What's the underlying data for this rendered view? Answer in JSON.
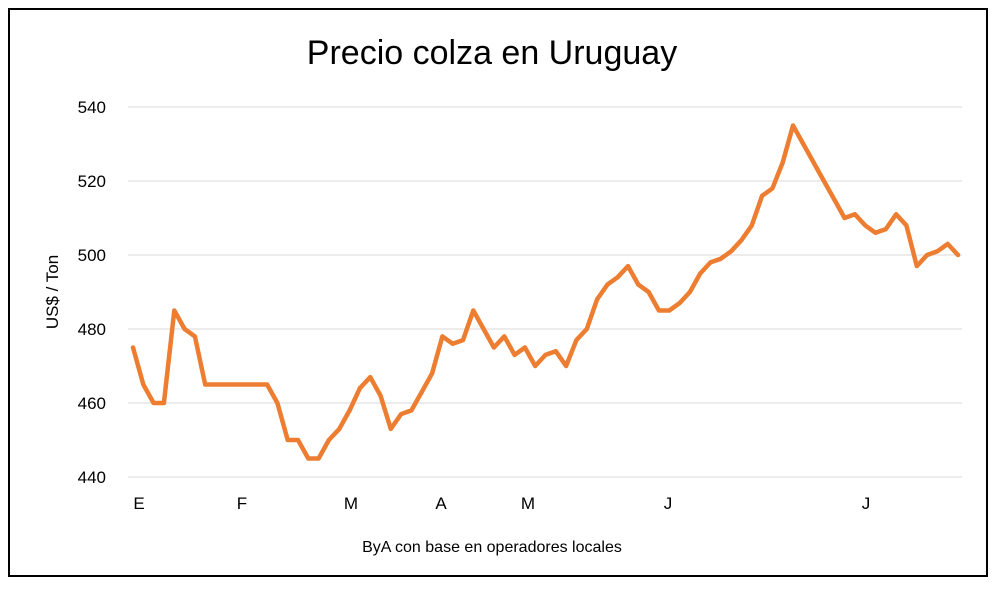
{
  "chart_data": {
    "type": "line",
    "title": "Precio colza en Uruguay",
    "ylabel": "US$ / Ton",
    "xlabel": "ByA con base en operadores locales",
    "ylim": [
      440,
      540
    ],
    "yticks": [
      440,
      460,
      480,
      500,
      520,
      540
    ],
    "month_labels": [
      "E",
      "F",
      "M",
      "A",
      "M",
      "J",
      "J"
    ],
    "grid": true,
    "line_color": "#ED7D31",
    "series": [
      {
        "values": [
          475,
          465,
          460,
          460,
          485,
          480,
          478,
          465,
          465,
          465,
          465,
          465,
          465,
          465,
          460,
          450,
          450,
          445,
          445,
          450,
          453,
          458,
          464,
          467,
          462,
          453,
          457,
          458,
          463,
          468,
          478,
          476,
          477,
          485,
          480,
          475,
          478,
          473,
          475,
          470,
          473,
          474,
          470,
          477,
          480,
          488,
          492,
          494,
          497,
          492,
          490,
          485,
          485,
          487,
          490,
          495,
          498,
          499,
          501,
          504,
          508,
          516,
          518,
          525,
          535,
          530,
          525,
          520,
          515,
          510,
          511,
          508,
          506,
          507,
          511,
          508,
          497,
          500,
          501,
          503,
          500
        ]
      }
    ]
  }
}
